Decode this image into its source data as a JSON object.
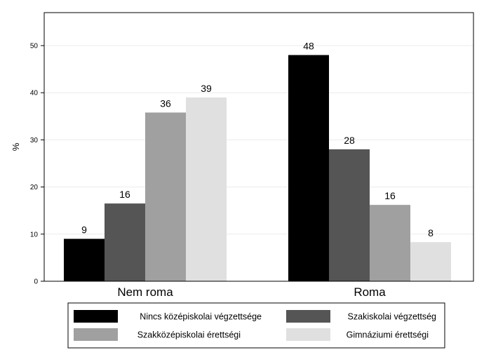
{
  "chart_data": {
    "type": "bar",
    "categories": [
      "Nem roma",
      "Roma"
    ],
    "series": [
      {
        "name": "Nincs középiskolai végzettsége",
        "values": [
          9,
          48
        ],
        "labels": [
          "9",
          "48"
        ],
        "color": "#000000"
      },
      {
        "name": "Szakiskolai végzettség",
        "values": [
          16.5,
          28
        ],
        "labels": [
          "16",
          "28"
        ],
        "color": "#555555"
      },
      {
        "name": "Szakközépiskolai érettségi",
        "values": [
          35.8,
          16.2
        ],
        "labels": [
          "36",
          "16"
        ],
        "color": "#a0a0a0"
      },
      {
        "name": "Gimnáziumi érettségi",
        "values": [
          39,
          8.3
        ],
        "labels": [
          "39",
          "8"
        ],
        "color": "#e0e0e0"
      }
    ],
    "ylabel": "%",
    "ylim": [
      0,
      57
    ],
    "yticks": [
      0,
      10,
      20,
      30,
      40,
      50
    ],
    "grid": true,
    "legend": "bottom"
  }
}
